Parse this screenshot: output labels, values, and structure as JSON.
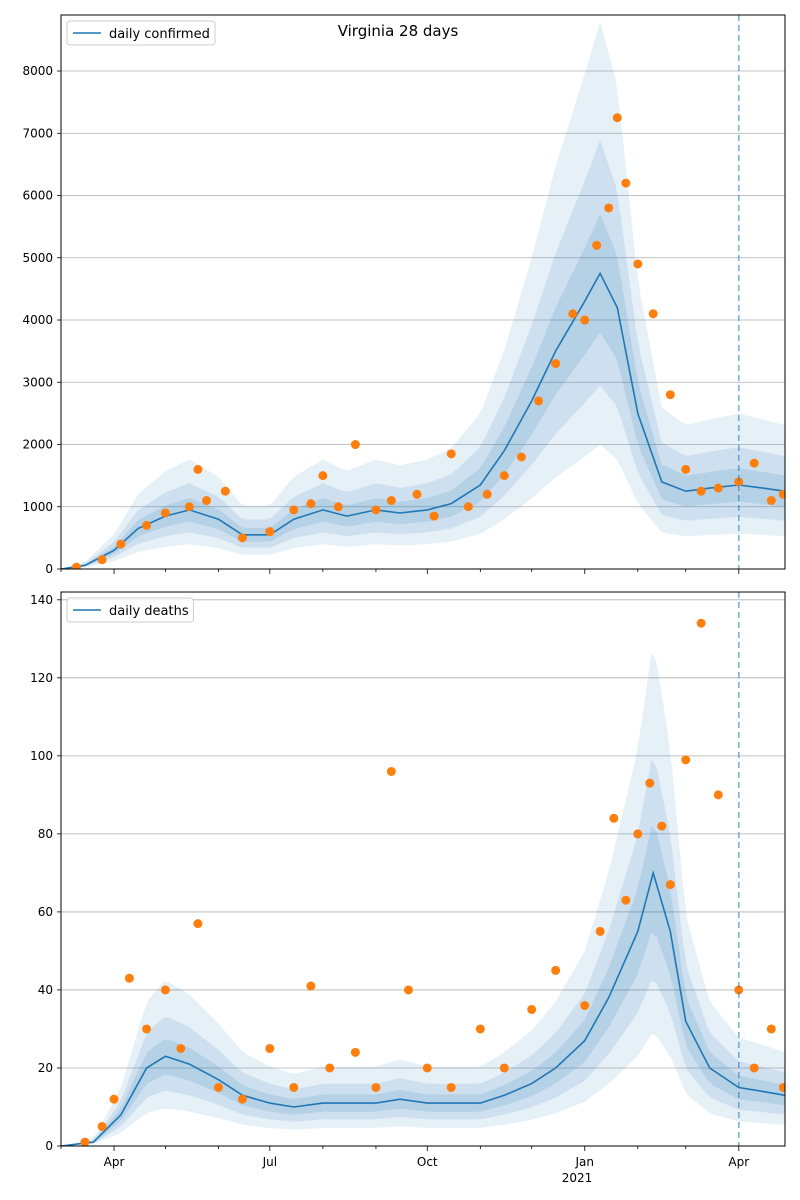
{
  "figure": {
    "suptitle": "Virginia 28 days",
    "year_label": "2021"
  },
  "colors": {
    "model_line": "#1f77b4",
    "band": "#1f77b4",
    "observed_points": "#ff7f0e",
    "reference_line": "#1f77b4",
    "grid": "#b0b0b0"
  },
  "chart_data": [
    {
      "type": "line",
      "title": "Virginia 28 days",
      "legend": [
        "daily confirmed"
      ],
      "legend_position": "top-left",
      "grid": "horizontal",
      "ylim": [
        0,
        8900
      ],
      "yticks": [
        0,
        1000,
        2000,
        3000,
        4000,
        5000,
        6000,
        7000,
        8000
      ],
      "xrange": [
        "2020-03-01",
        "2021-04-28"
      ],
      "reference_date": "2021-04-01",
      "series": [
        {
          "name": "daily confirmed",
          "role": "model_median",
          "x": [
            "2020-03-01",
            "2020-03-15",
            "2020-04-01",
            "2020-04-15",
            "2020-05-01",
            "2020-05-15",
            "2020-06-01",
            "2020-06-15",
            "2020-07-01",
            "2020-07-15",
            "2020-08-01",
            "2020-08-15",
            "2020-09-01",
            "2020-09-15",
            "2020-10-01",
            "2020-10-15",
            "2020-11-01",
            "2020-11-15",
            "2020-12-01",
            "2020-12-15",
            "2021-01-01",
            "2021-01-10",
            "2021-01-20",
            "2021-02-01",
            "2021-02-15",
            "2021-03-01",
            "2021-03-15",
            "2021-04-01",
            "2021-04-15",
            "2021-04-28"
          ],
          "y": [
            0,
            60,
            300,
            650,
            850,
            950,
            800,
            550,
            550,
            800,
            950,
            850,
            950,
            900,
            950,
            1050,
            1350,
            1900,
            2700,
            3500,
            4300,
            4750,
            4200,
            2500,
            1400,
            1250,
            1300,
            1350,
            1300,
            1250
          ]
        },
        {
          "name": "observed daily confirmed",
          "role": "observations",
          "x": [
            "2020-03-10",
            "2020-03-25",
            "2020-04-05",
            "2020-04-20",
            "2020-05-01",
            "2020-05-15",
            "2020-05-20",
            "2020-05-25",
            "2020-06-05",
            "2020-06-15",
            "2020-07-01",
            "2020-07-15",
            "2020-07-25",
            "2020-08-01",
            "2020-08-10",
            "2020-08-20",
            "2020-09-01",
            "2020-09-10",
            "2020-09-25",
            "2020-10-05",
            "2020-10-15",
            "2020-10-25",
            "2020-11-05",
            "2020-11-15",
            "2020-11-25",
            "2020-12-05",
            "2020-12-15",
            "2020-12-25",
            "2021-01-01",
            "2021-01-08",
            "2021-01-15",
            "2021-01-20",
            "2021-01-25",
            "2021-02-01",
            "2021-02-10",
            "2021-02-20",
            "2021-03-01",
            "2021-03-10",
            "2021-03-20",
            "2021-04-01",
            "2021-04-10",
            "2021-04-20",
            "2021-04-27"
          ],
          "y": [
            30,
            150,
            400,
            700,
            900,
            1000,
            1600,
            1100,
            1250,
            500,
            600,
            950,
            1050,
            1500,
            1000,
            2000,
            950,
            1100,
            1200,
            850,
            1850,
            1000,
            1200,
            1500,
            1800,
            2700,
            3300,
            4100,
            4000,
            5200,
            5800,
            7250,
            6200,
            4900,
            4100,
            2800,
            1600,
            1250,
            1300,
            1400,
            1700,
            1100,
            1200
          ]
        }
      ]
    },
    {
      "type": "line",
      "legend": [
        "daily deaths"
      ],
      "legend_position": "top-left",
      "grid": "horizontal",
      "ylim": [
        0,
        142
      ],
      "yticks": [
        0,
        20,
        40,
        60,
        80,
        100,
        120,
        140
      ],
      "xticks": [
        "Apr",
        "Jul",
        "Oct",
        "Jan",
        "Apr"
      ],
      "xrange": [
        "2020-03-01",
        "2021-04-28"
      ],
      "reference_date": "2021-04-01",
      "series": [
        {
          "name": "daily deaths",
          "role": "model_median",
          "x": [
            "2020-03-01",
            "2020-03-20",
            "2020-04-05",
            "2020-04-20",
            "2020-05-01",
            "2020-05-15",
            "2020-06-01",
            "2020-06-15",
            "2020-07-01",
            "2020-07-15",
            "2020-08-01",
            "2020-08-15",
            "2020-09-01",
            "2020-09-15",
            "2020-10-01",
            "2020-10-15",
            "2020-11-01",
            "2020-11-15",
            "2020-12-01",
            "2020-12-15",
            "2021-01-01",
            "2021-01-15",
            "2021-02-01",
            "2021-02-10",
            "2021-02-20",
            "2021-03-01",
            "2021-03-15",
            "2021-04-01",
            "2021-04-15",
            "2021-04-28"
          ],
          "y": [
            0,
            1,
            8,
            20,
            23,
            21,
            17,
            13,
            11,
            10,
            11,
            11,
            11,
            12,
            11,
            11,
            11,
            13,
            16,
            20,
            27,
            38,
            55,
            70,
            55,
            32,
            20,
            15,
            14,
            13
          ]
        },
        {
          "name": "observed daily deaths",
          "role": "observations",
          "x": [
            "2020-03-15",
            "2020-03-25",
            "2020-04-01",
            "2020-04-10",
            "2020-04-20",
            "2020-05-01",
            "2020-05-10",
            "2020-05-20",
            "2020-06-01",
            "2020-06-15",
            "2020-07-01",
            "2020-07-15",
            "2020-07-25",
            "2020-08-05",
            "2020-08-20",
            "2020-09-01",
            "2020-09-10",
            "2020-09-20",
            "2020-10-01",
            "2020-10-15",
            "2020-11-01",
            "2020-11-15",
            "2020-12-01",
            "2020-12-15",
            "2021-01-01",
            "2021-01-10",
            "2021-01-18",
            "2021-01-25",
            "2021-02-01",
            "2021-02-08",
            "2021-02-15",
            "2021-02-20",
            "2021-03-01",
            "2021-03-10",
            "2021-03-20",
            "2021-04-01",
            "2021-04-10",
            "2021-04-20",
            "2021-04-27"
          ],
          "y": [
            1,
            5,
            12,
            43,
            30,
            40,
            25,
            57,
            15,
            12,
            25,
            15,
            41,
            20,
            24,
            15,
            96,
            40,
            20,
            15,
            30,
            20,
            35,
            45,
            36,
            55,
            84,
            63,
            80,
            93,
            82,
            67,
            99,
            134,
            90,
            40,
            20,
            30,
            15
          ]
        }
      ]
    }
  ]
}
